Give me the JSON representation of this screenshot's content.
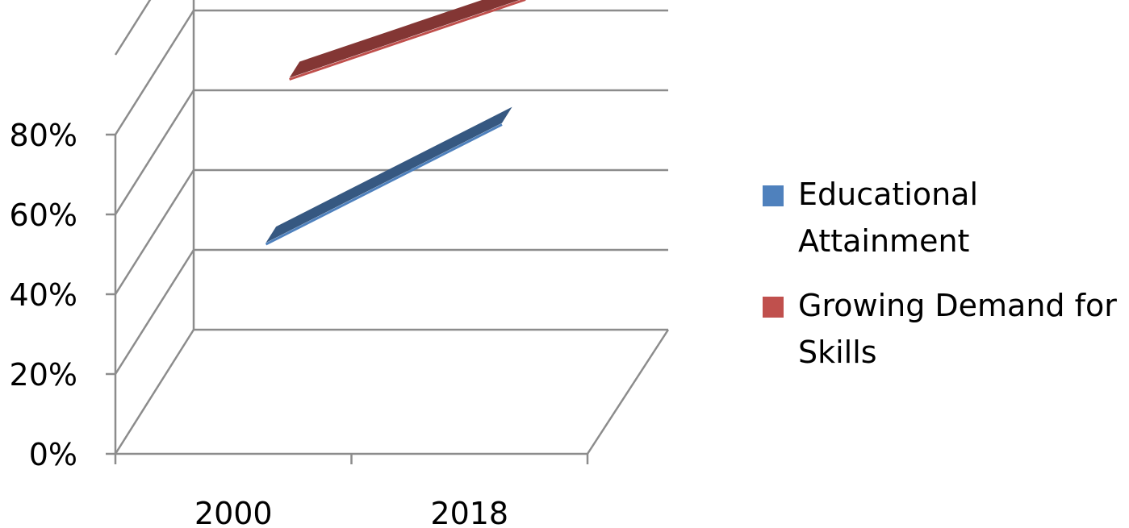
{
  "chart_data": {
    "type": "line",
    "style": "3d",
    "title": "",
    "xlabel": "",
    "ylabel": "",
    "categories": [
      "2000",
      "2018"
    ],
    "ylim": [
      0,
      1.0
    ],
    "yticks": [
      "0%",
      "20%",
      "40%",
      "60%",
      "80%"
    ],
    "grid": true,
    "legend_position": "right",
    "series": [
      {
        "name": "Educational Attainment",
        "values": [
          0.4,
          0.7
        ],
        "color": "#4f81bd"
      },
      {
        "name": "Growing Demand for Skills",
        "values": [
          0.72,
          0.92
        ],
        "color": "#c0504d"
      }
    ]
  }
}
